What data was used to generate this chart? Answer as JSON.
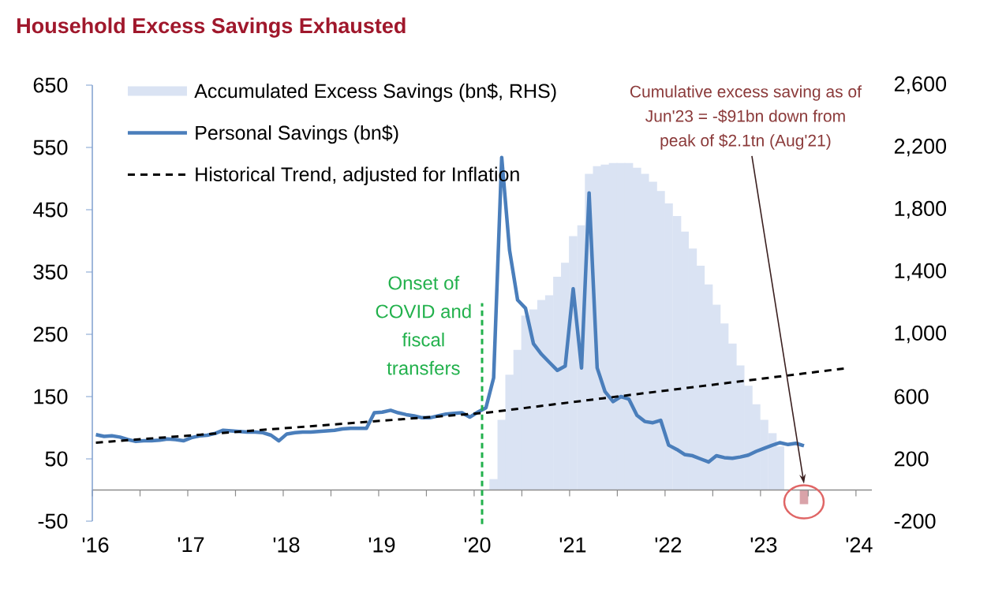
{
  "chart_data": {
    "type": "line",
    "title": "Household Excess Savings Exhausted",
    "series": [
      {
        "name": "Accumulated Excess Savings (bn$, RHS)",
        "type": "bar",
        "axis": "y2",
        "x": [
          "2020-03-15",
          "2020-04-15",
          "2020-05-15",
          "2020-06-15",
          "2020-07-15",
          "2020-08-15",
          "2020-09-15",
          "2020-10-15",
          "2020-11-15",
          "2020-12-15",
          "2021-01-15",
          "2021-02-15",
          "2021-03-15",
          "2021-04-15",
          "2021-05-15",
          "2021-06-15",
          "2021-07-15",
          "2021-08-15",
          "2021-09-15",
          "2021-10-15",
          "2021-11-15",
          "2021-12-15",
          "2022-01-15",
          "2022-02-15",
          "2022-03-15",
          "2022-04-15",
          "2022-05-15",
          "2022-06-15",
          "2022-07-15",
          "2022-08-15",
          "2022-09-15",
          "2022-10-15",
          "2022-11-15",
          "2022-12-15",
          "2023-01-15",
          "2023-02-15",
          "2023-03-15",
          "2023-06-15"
        ],
        "values": [
          70,
          450,
          740,
          900,
          1120,
          1160,
          1220,
          1250,
          1370,
          1460,
          1630,
          1700,
          2030,
          2080,
          2090,
          2100,
          2100,
          2100,
          2070,
          2030,
          1980,
          1920,
          1840,
          1760,
          1660,
          1550,
          1440,
          1320,
          1190,
          1070,
          940,
          800,
          670,
          550,
          450,
          365,
          280,
          -91
        ],
        "colors": [
          "#dae3f3",
          "#dae3f3",
          "#dae3f3",
          "#dae3f3",
          "#dae3f3",
          "#dae3f3",
          "#dae3f3",
          "#dae3f3",
          "#dae3f3",
          "#dae3f3",
          "#dae3f3",
          "#dae3f3",
          "#dae3f3",
          "#dae3f3",
          "#dae3f3",
          "#dae3f3",
          "#dae3f3",
          "#dae3f3",
          "#dae3f3",
          "#dae3f3",
          "#dae3f3",
          "#dae3f3",
          "#dae3f3",
          "#dae3f3",
          "#dae3f3",
          "#dae3f3",
          "#dae3f3",
          "#dae3f3",
          "#dae3f3",
          "#dae3f3",
          "#dae3f3",
          "#dae3f3",
          "#dae3f3",
          "#dae3f3",
          "#dae3f3",
          "#dae3f3",
          "#dae3f3",
          "#d9a3a9"
        ]
      },
      {
        "name": "Personal Savings (bn$)",
        "color": "#4a7ebb",
        "x": [
          "2016-01-15",
          "2016-02-15",
          "2016-03-15",
          "2016-04-15",
          "2016-05-15",
          "2016-06-15",
          "2016-07-15",
          "2016-08-15",
          "2016-09-15",
          "2016-10-15",
          "2016-11-15",
          "2016-12-15",
          "2017-01-15",
          "2017-02-15",
          "2017-03-15",
          "2017-04-15",
          "2017-05-15",
          "2017-06-15",
          "2017-07-15",
          "2017-08-15",
          "2017-09-15",
          "2017-10-15",
          "2017-11-15",
          "2017-12-15",
          "2018-01-15",
          "2018-02-15",
          "2018-03-15",
          "2018-04-15",
          "2018-05-15",
          "2018-06-15",
          "2018-07-15",
          "2018-08-15",
          "2018-09-15",
          "2018-10-15",
          "2018-11-15",
          "2018-12-15",
          "2019-01-15",
          "2019-02-15",
          "2019-03-15",
          "2019-04-15",
          "2019-05-15",
          "2019-06-15",
          "2019-07-15",
          "2019-08-15",
          "2019-09-15",
          "2019-10-15",
          "2019-11-15",
          "2019-12-15",
          "2020-01-15",
          "2020-02-15",
          "2020-03-15",
          "2020-04-15",
          "2020-05-15",
          "2020-06-15",
          "2020-07-15",
          "2020-08-15",
          "2020-09-15",
          "2020-10-15",
          "2020-11-15",
          "2020-12-15",
          "2021-01-15",
          "2021-02-15",
          "2021-03-15",
          "2021-04-15",
          "2021-05-15",
          "2021-06-15",
          "2021-07-15",
          "2021-08-15",
          "2021-09-15",
          "2021-10-15",
          "2021-11-15",
          "2021-12-15",
          "2022-01-15",
          "2022-02-15",
          "2022-03-15",
          "2022-04-15",
          "2022-05-15",
          "2022-06-15",
          "2022-07-15",
          "2022-08-15",
          "2022-09-15",
          "2022-10-15",
          "2022-11-15",
          "2022-12-15",
          "2023-01-15",
          "2023-02-15",
          "2023-03-15",
          "2023-04-15",
          "2023-05-15",
          "2023-06-15"
        ],
        "values": [
          89,
          86,
          87,
          85,
          81,
          78,
          79,
          79,
          80,
          82,
          81,
          79,
          84,
          87,
          88,
          91,
          96,
          95,
          94,
          93,
          93,
          92,
          88,
          79,
          90,
          92,
          93,
          93,
          94,
          95,
          96,
          98,
          99,
          99,
          99,
          124,
          125,
          128,
          124,
          121,
          119,
          116,
          116,
          119,
          122,
          123,
          124,
          117,
          125,
          132,
          180,
          534,
          385,
          305,
          292,
          235,
          218,
          205,
          192,
          199,
          323,
          196,
          477,
          196,
          158,
          142,
          150,
          146,
          120,
          110,
          108,
          112,
          72,
          65,
          57,
          55,
          50,
          45,
          55,
          52,
          51,
          53,
          56,
          62,
          67,
          72,
          76,
          73,
          75,
          71
        ]
      },
      {
        "name": "Historical Trend, adjusted for Inflation",
        "color": "#000000",
        "line_style": "dashed",
        "x": [
          "2016-01-15",
          "2020-02-15",
          "2023-11-15"
        ],
        "values": [
          76,
          124,
          195
        ]
      }
    ],
    "xlim": [
      "2016-01-01",
      "2024-03-01"
    ],
    "xticks": [
      {
        "value": "2016-01-01",
        "label": "'16"
      },
      {
        "value": "2016-07-01",
        "label": null
      },
      {
        "value": "2017-01-01",
        "label": "'17"
      },
      {
        "value": "2017-07-01",
        "label": null
      },
      {
        "value": "2018-01-01",
        "label": "'18"
      },
      {
        "value": "2018-07-01",
        "label": null
      },
      {
        "value": "2019-01-01",
        "label": "'19"
      },
      {
        "value": "2019-07-01",
        "label": null
      },
      {
        "value": "2020-01-01",
        "label": "'20"
      },
      {
        "value": "2020-07-01",
        "label": null
      },
      {
        "value": "2021-01-01",
        "label": "'21"
      },
      {
        "value": "2021-07-01",
        "label": null
      },
      {
        "value": "2022-01-01",
        "label": "'22"
      },
      {
        "value": "2022-07-01",
        "label": null
      },
      {
        "value": "2023-01-01",
        "label": "'23"
      },
      {
        "value": "2023-07-01",
        "label": null
      },
      {
        "value": "2024-01-01",
        "label": "'24"
      }
    ],
    "ylim": [
      -50,
      650
    ],
    "yticks": [
      -50,
      50,
      150,
      250,
      350,
      450,
      550,
      650
    ],
    "y2lim": [
      -200,
      2600
    ],
    "y2ticks": [
      -200,
      200,
      600,
      {
        "value": 1000,
        "label": "1,000"
      },
      {
        "value": 1400,
        "label": "1,400"
      },
      {
        "value": 1800,
        "label": "1,800"
      },
      {
        "value": 2200,
        "label": "2,200"
      },
      {
        "value": 2600,
        "label": "2,600"
      }
    ],
    "ref_lines": [
      {
        "axis": "x",
        "value": "2020-02-01",
        "label": "Onset of COVID and fiscal transfers",
        "color": "#22b14c",
        "line_style": "dashed"
      }
    ],
    "annotations": [
      "Cumulative excess saving as of Jun'23 = -$91bn down from peak of $2.1tn (Aug'21)"
    ],
    "legend": "top left"
  }
}
